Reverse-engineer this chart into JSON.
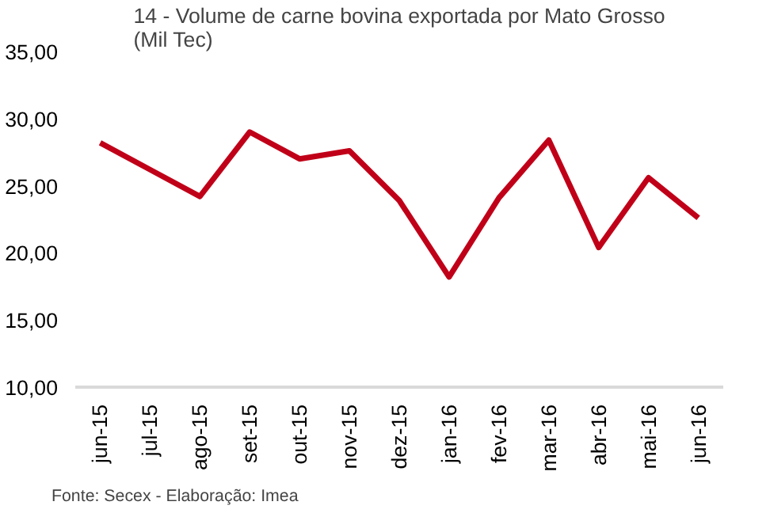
{
  "chart_data": {
    "type": "line",
    "title": "14 - Volume de carne bovina exportada por Mato Grosso\n(Mil Tec)",
    "categories": [
      "jun-15",
      "jul-15",
      "ago-15",
      "set-15",
      "out-15",
      "nov-15",
      "dez-15",
      "jan-16",
      "fev-16",
      "mar-16",
      "abr-16",
      "mai-16",
      "jun-16"
    ],
    "series": [
      {
        "color": "#c00018",
        "values": [
          28.2,
          26.2,
          24.2,
          29.0,
          27.0,
          27.6,
          23.9,
          18.2,
          24.1,
          28.4,
          20.4,
          25.6,
          22.6
        ]
      }
    ],
    "ylim": [
      10,
      35
    ],
    "yticks": [
      {
        "value": 10,
        "label": "10,00"
      },
      {
        "value": 15,
        "label": "15,00"
      },
      {
        "value": 20,
        "label": "20,00"
      },
      {
        "value": 25,
        "label": "25,00"
      },
      {
        "value": 30,
        "label": "30,00"
      },
      {
        "value": 35,
        "label": "35,00"
      }
    ],
    "grid": false,
    "marker": "none",
    "line_style": "solid",
    "annotations": [
      "Fonte: Secex - Elaboração: Imea"
    ]
  }
}
